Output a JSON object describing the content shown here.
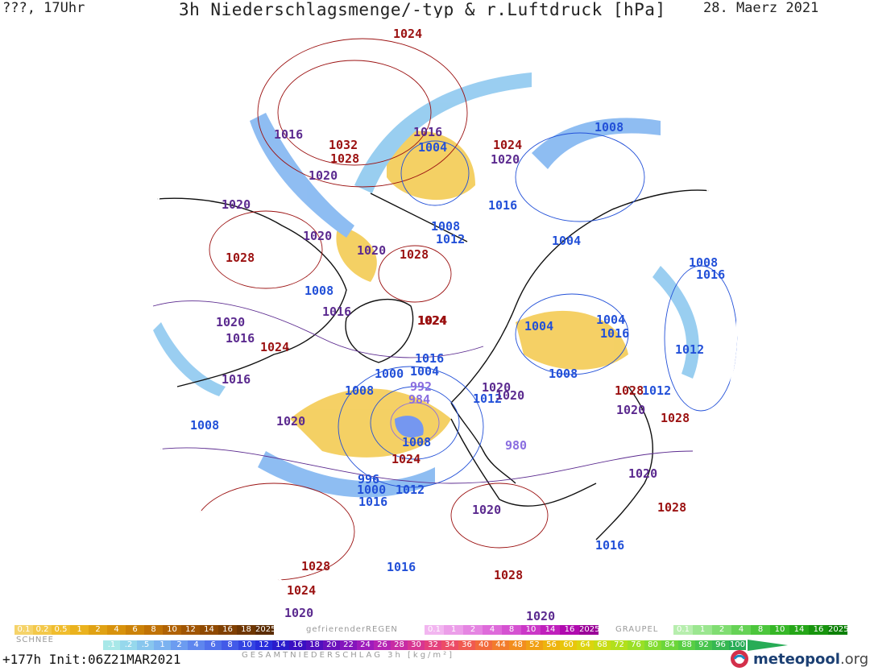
{
  "header": {
    "left": "???, 17Uhr",
    "title": "3h Niederschlagsmenge/-typ & r.Luftdruck [hPa]",
    "date": "28. Maerz 2021"
  },
  "isobar_labels": [
    {
      "text": "1024",
      "color": "#9b1111"
    },
    {
      "text": "1016",
      "color": "#5b2a8f"
    },
    {
      "text": "1032",
      "color": "#9b1111"
    },
    {
      "text": "1028",
      "color": "#9b1111"
    },
    {
      "text": "1020",
      "color": "#5b2a8f"
    },
    {
      "text": "1016",
      "color": "#5b2a8f"
    },
    {
      "text": "1004",
      "color": "#2250d8"
    },
    {
      "text": "1024",
      "color": "#9b1111"
    },
    {
      "text": "1020",
      "color": "#5b2a8f"
    },
    {
      "text": "1008",
      "color": "#2250d8"
    },
    {
      "text": "1020",
      "color": "#5b2a8f"
    },
    {
      "text": "1016",
      "color": "#2250d8"
    },
    {
      "text": "1008",
      "color": "#2250d8"
    },
    {
      "text": "1012",
      "color": "#2250d8"
    },
    {
      "text": "1004",
      "color": "#2250d8"
    },
    {
      "text": "1020",
      "color": "#5b2a8f"
    },
    {
      "text": "1028",
      "color": "#9b1111"
    },
    {
      "text": "1020",
      "color": "#5b2a8f"
    },
    {
      "text": "1028",
      "color": "#9b1111"
    },
    {
      "text": "1008",
      "color": "#2250d8"
    },
    {
      "text": "1016",
      "color": "#2250d8"
    },
    {
      "text": "1008",
      "color": "#2250d8"
    },
    {
      "text": "1016",
      "color": "#5b2a8f"
    },
    {
      "text": "1020",
      "color": "#5b2a8f"
    },
    {
      "text": "1024",
      "color": "#9b1111"
    },
    {
      "text": "1024",
      "color": "#9b1111"
    },
    {
      "text": "1004",
      "color": "#2250d8"
    },
    {
      "text": "1004",
      "color": "#2250d8"
    },
    {
      "text": "1016",
      "color": "#2250d8"
    },
    {
      "text": "1016",
      "color": "#2250d8"
    },
    {
      "text": "1016",
      "color": "#5b2a8f"
    },
    {
      "text": "1004",
      "color": "#2250d8"
    },
    {
      "text": "1008",
      "color": "#2250d8"
    },
    {
      "text": "1000",
      "color": "#2250d8"
    },
    {
      "text": "992",
      "color": "#8a6ee0"
    },
    {
      "text": "1008",
      "color": "#2250d8"
    },
    {
      "text": "984",
      "color": "#8a6ee0"
    },
    {
      "text": "1020",
      "color": "#5b2a8f"
    },
    {
      "text": "1012",
      "color": "#2250d8"
    },
    {
      "text": "1012",
      "color": "#2250d8"
    },
    {
      "text": "1008",
      "color": "#2250d8"
    },
    {
      "text": "1020",
      "color": "#5b2a8f"
    },
    {
      "text": "1020",
      "color": "#5b2a8f"
    },
    {
      "text": "1028",
      "color": "#9b1111"
    },
    {
      "text": "1008",
      "color": "#2250d8"
    },
    {
      "text": "980",
      "color": "#8a6ee0"
    },
    {
      "text": "1024",
      "color": "#9b1111"
    },
    {
      "text": "996",
      "color": "#2250d8"
    },
    {
      "text": "1000",
      "color": "#2250d8"
    },
    {
      "text": "1012",
      "color": "#2250d8"
    },
    {
      "text": "1016",
      "color": "#2250d8"
    },
    {
      "text": "1020",
      "color": "#5b2a8f"
    },
    {
      "text": "1020",
      "color": "#5b2a8f"
    },
    {
      "text": "1028",
      "color": "#9b1111"
    },
    {
      "text": "1012",
      "color": "#2250d8"
    },
    {
      "text": "1016",
      "color": "#2250d8"
    },
    {
      "text": "1028",
      "color": "#9b1111"
    },
    {
      "text": "1016",
      "color": "#2250d8"
    },
    {
      "text": "1028",
      "color": "#9b1111"
    },
    {
      "text": "1024",
      "color": "#9b1111"
    },
    {
      "text": "1020",
      "color": "#5b2a8f"
    },
    {
      "text": "1020",
      "color": "#5b2a8f"
    },
    {
      "text": "1028",
      "color": "#9b1111"
    },
    {
      "text": "1016",
      "color": "#5b2a8f"
    },
    {
      "text": "1024",
      "color": "#9b1111"
    },
    {
      "text": "1020",
      "color": "#5b2a8f"
    }
  ],
  "legend": {
    "snow_title": "SCHNEE",
    "snow": [
      {
        "label": "0.1",
        "color": "#f5d36a"
      },
      {
        "label": "0.2",
        "color": "#f3c84a"
      },
      {
        "label": "0.5",
        "color": "#f0bd2e"
      },
      {
        "label": "1",
        "color": "#eab21e"
      },
      {
        "label": "2",
        "color": "#e0a214"
      },
      {
        "label": "4",
        "color": "#d8920c"
      },
      {
        "label": "6",
        "color": "#cc8208"
      },
      {
        "label": "8",
        "color": "#c07205"
      },
      {
        "label": "10",
        "color": "#b06204"
      },
      {
        "label": "12",
        "color": "#a05503"
      },
      {
        "label": "14",
        "color": "#904a02"
      },
      {
        "label": "16",
        "color": "#804002"
      },
      {
        "label": "18",
        "color": "#6e3602"
      },
      {
        "label": "2025+",
        "color": "#5a2c02"
      }
    ],
    "freezing_title": "gefrierenderREGEN",
    "freezing": [
      {
        "label": "0.1",
        "color": "#f2b6f0"
      },
      {
        "label": "1",
        "color": "#ec9ee9"
      },
      {
        "label": "2",
        "color": "#e585e2"
      },
      {
        "label": "4",
        "color": "#de6bda"
      },
      {
        "label": "8",
        "color": "#d552d1"
      },
      {
        "label": "10",
        "color": "#cb38c7"
      },
      {
        "label": "14",
        "color": "#c020bc"
      },
      {
        "label": "16",
        "color": "#b00aaf"
      },
      {
        "label": "2025+",
        "color": "#9a0098"
      }
    ],
    "graupel_title": "GRAUPEL",
    "graupel": [
      {
        "label": "0.1",
        "color": "#b7eeae"
      },
      {
        "label": "1",
        "color": "#9be690"
      },
      {
        "label": "2",
        "color": "#80dd72"
      },
      {
        "label": "4",
        "color": "#66d256"
      },
      {
        "label": "8",
        "color": "#4cc63c"
      },
      {
        "label": "10",
        "color": "#36b727"
      },
      {
        "label": "14",
        "color": "#25a618"
      },
      {
        "label": "16",
        "color": "#17940d"
      },
      {
        "label": "2025+",
        "color": "#0c8006"
      }
    ],
    "total": [
      {
        "label": ".1",
        "color": "#a8e8e8"
      },
      {
        "label": ".2",
        "color": "#96d8ec"
      },
      {
        "label": ".5",
        "color": "#88c6ee"
      },
      {
        "label": "1",
        "color": "#7bb2f0"
      },
      {
        "label": "2",
        "color": "#6c9cf0"
      },
      {
        "label": "4",
        "color": "#5e86ee"
      },
      {
        "label": "6",
        "color": "#5070ec"
      },
      {
        "label": "8",
        "color": "#425ae8"
      },
      {
        "label": "10",
        "color": "#3444e2"
      },
      {
        "label": "12",
        "color": "#282edc"
      },
      {
        "label": "14",
        "color": "#2a1ccc"
      },
      {
        "label": "16",
        "color": "#3a10c2"
      },
      {
        "label": "18",
        "color": "#5010be"
      },
      {
        "label": "20",
        "color": "#6a12bc"
      },
      {
        "label": "22",
        "color": "#8416bc"
      },
      {
        "label": "24",
        "color": "#9e1cbc"
      },
      {
        "label": "26",
        "color": "#b624b4"
      },
      {
        "label": "28",
        "color": "#c82ca4"
      },
      {
        "label": "30",
        "color": "#d83692"
      },
      {
        "label": "32",
        "color": "#e4407c"
      },
      {
        "label": "34",
        "color": "#ec4c66"
      },
      {
        "label": "36",
        "color": "#f05a50"
      },
      {
        "label": "40",
        "color": "#f26a3c"
      },
      {
        "label": "44",
        "color": "#f27c2c"
      },
      {
        "label": "48",
        "color": "#f28e1e"
      },
      {
        "label": "52",
        "color": "#f0a014"
      },
      {
        "label": "56",
        "color": "#eeb40e"
      },
      {
        "label": "60",
        "color": "#e8c60c"
      },
      {
        "label": "64",
        "color": "#dcd40e"
      },
      {
        "label": "68",
        "color": "#c8dc14"
      },
      {
        "label": "72",
        "color": "#b2e01c"
      },
      {
        "label": "76",
        "color": "#9ae026"
      },
      {
        "label": "80",
        "color": "#82dc30"
      },
      {
        "label": "84",
        "color": "#6cd63a"
      },
      {
        "label": "88",
        "color": "#58ce44"
      },
      {
        "label": "92",
        "color": "#46c44c"
      },
      {
        "label": "96",
        "color": "#36b852"
      },
      {
        "label": "100",
        "color": "#28ac56"
      }
    ],
    "total_title": "GESAMTNIEDERSCHLAG 3h [kg/m²]"
  },
  "footer": {
    "run": "+177h Init:06Z21MAR2021"
  },
  "logo": {
    "name": "meteopool",
    "tld": ".org"
  }
}
